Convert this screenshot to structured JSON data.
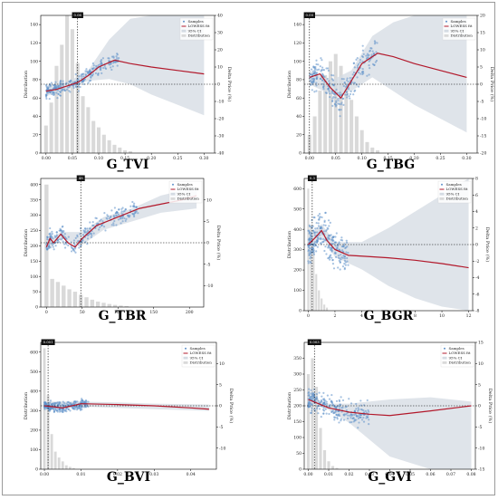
{
  "panels": [
    {
      "id": "tvi",
      "chart_data": {
        "type": "scatter",
        "title": "G_TVI",
        "ylabel_left": "Distribution",
        "ylabel_right": "Delta Price (%)",
        "xlim": [
          -0.01,
          0.32
        ],
        "ylim_left": [
          0,
          150
        ],
        "ylim_right": [
          -40,
          40
        ],
        "xticks": [
          0.0,
          0.05,
          0.1,
          0.15,
          0.2,
          0.25,
          0.3
        ],
        "xtick_labels": [
          "0.00",
          "0.05",
          "0.10",
          "0.15",
          "0.20",
          "0.25",
          "0.30"
        ],
        "yticks_left": [
          0,
          20,
          40,
          60,
          80,
          100,
          120,
          140
        ],
        "yticks_right": [
          -40,
          -30,
          -20,
          -10,
          0,
          10,
          20,
          30,
          40
        ],
        "threshold_x": 0.06,
        "threshold_label": "0.06",
        "legend": [
          "Samples",
          "LOWESS fit",
          "95% CI",
          "Distribution"
        ],
        "legend_position": "top-right",
        "hist": {
          "x": [
            0.0,
            0.01,
            0.02,
            0.03,
            0.04,
            0.05,
            0.06,
            0.07,
            0.08,
            0.09,
            0.1,
            0.11,
            0.12,
            0.13,
            0.14,
            0.15,
            0.16
          ],
          "values": [
            30,
            55,
            95,
            118,
            150,
            135,
            98,
            62,
            50,
            35,
            28,
            20,
            14,
            9,
            6,
            3,
            2
          ]
        },
        "lowess": {
          "x": [
            0.0,
            0.02,
            0.04,
            0.06,
            0.08,
            0.1,
            0.13,
            0.16,
            0.2,
            0.25,
            0.3
          ],
          "y": [
            -4,
            -3,
            -1,
            1,
            5,
            10,
            14,
            12,
            10,
            8,
            6
          ]
        },
        "ci": {
          "x": [
            0.0,
            0.04,
            0.08,
            0.12,
            0.16,
            0.2,
            0.25,
            0.3
          ],
          "upper": [
            -1,
            1,
            8,
            26,
            38,
            40,
            40,
            40
          ],
          "lower": [
            -7,
            -3,
            2,
            3,
            0,
            -6,
            -12,
            -18
          ]
        },
        "scatter": {
          "x_range": [
            0.0,
            0.14
          ],
          "y_center": [
            -4,
            14
          ],
          "spread": 4
        }
      }
    },
    {
      "id": "tbg",
      "chart_data": {
        "type": "scatter",
        "title": "G_TBG",
        "ylabel_left": "Distribution",
        "ylabel_right": "Delta Price (%)",
        "xlim": [
          -0.01,
          0.32
        ],
        "ylim_left": [
          0,
          150
        ],
        "ylim_right": [
          -20,
          20
        ],
        "xticks": [
          0.0,
          0.05,
          0.1,
          0.15,
          0.2,
          0.25,
          0.3
        ],
        "xtick_labels": [
          "0.00",
          "0.05",
          "0.10",
          "0.15",
          "0.20",
          "0.25",
          "0.30"
        ],
        "yticks_left": [
          0,
          20,
          40,
          60,
          80,
          100,
          120,
          140
        ],
        "yticks_right": [
          -20,
          -15,
          -10,
          -5,
          0,
          5,
          10,
          15,
          20
        ],
        "threshold_x": 0.0,
        "threshold_label": "0.00",
        "legend": [
          "Samples",
          "LOWESS fit",
          "95% CI",
          "Distribution"
        ],
        "legend_position": "top-right",
        "hist": {
          "x": [
            0.0,
            0.01,
            0.02,
            0.03,
            0.04,
            0.05,
            0.06,
            0.07,
            0.08,
            0.09,
            0.1,
            0.11,
            0.12,
            0.13
          ],
          "values": [
            20,
            40,
            68,
            85,
            100,
            108,
            95,
            75,
            58,
            40,
            25,
            12,
            6,
            3
          ]
        },
        "lowess": {
          "x": [
            0.0,
            0.02,
            0.04,
            0.06,
            0.08,
            0.1,
            0.13,
            0.16,
            0.2,
            0.25,
            0.3
          ],
          "y": [
            2,
            3,
            -1,
            -4,
            1,
            6,
            9,
            8,
            6,
            4,
            2
          ]
        },
        "ci": {
          "x": [
            0.0,
            0.04,
            0.08,
            0.12,
            0.16,
            0.2,
            0.25,
            0.3
          ],
          "upper": [
            4,
            1,
            4,
            14,
            18,
            20,
            20,
            20
          ],
          "lower": [
            0,
            -3,
            -2,
            2,
            -2,
            -6,
            -10,
            -14
          ]
        },
        "scatter": {
          "x_range": [
            0.0,
            0.13
          ],
          "y_center": [
            -5,
            10
          ],
          "spread": 4
        }
      }
    },
    {
      "id": "tbr",
      "chart_data": {
        "type": "scatter",
        "title": "G_TBR",
        "ylabel_left": "Distribution",
        "ylabel_right": "Delta Price (%)",
        "xlim": [
          -8,
          220
        ],
        "ylim_left": [
          0,
          420
        ],
        "ylim_right": [
          -15,
          15
        ],
        "xticks": [
          0,
          50,
          100,
          150,
          200
        ],
        "xtick_labels": [
          "0",
          "50",
          "100",
          "150",
          "200"
        ],
        "yticks_left": [
          0,
          50,
          100,
          150,
          200,
          250,
          300,
          350,
          400
        ],
        "yticks_right": [
          -10,
          -5,
          0,
          5,
          10
        ],
        "threshold_x": 48,
        "threshold_label": "48",
        "legend": [
          "Samples",
          "LOWESS fit",
          "95% CI",
          "Distribution"
        ],
        "legend_position": "top-right",
        "hist": {
          "x": [
            0,
            8,
            16,
            24,
            32,
            40,
            48,
            56,
            64,
            72,
            80,
            88,
            96,
            104,
            112
          ],
          "values": [
            400,
            92,
            82,
            70,
            58,
            50,
            40,
            32,
            24,
            18,
            14,
            10,
            7,
            5,
            3
          ]
        },
        "lowess": {
          "x": [
            0,
            5,
            10,
            20,
            30,
            40,
            50,
            70,
            100,
            130,
            160,
            190,
            210
          ],
          "y": [
            -1,
            1,
            0,
            2,
            0,
            -1,
            1,
            4,
            6,
            8,
            9,
            10,
            11
          ]
        },
        "ci": {
          "x": [
            0,
            20,
            50,
            80,
            120,
            160,
            210
          ],
          "upper": [
            0,
            2.5,
            2.5,
            6,
            8,
            11,
            13
          ],
          "lower": [
            -2,
            1,
            -0.5,
            3,
            5,
            7,
            8
          ]
        },
        "scatter": {
          "x_range": [
            0,
            130
          ],
          "y_center": [
            -1,
            8
          ],
          "spread": 2
        }
      }
    },
    {
      "id": "bgr",
      "chart_data": {
        "type": "scatter",
        "title": "G_BGR",
        "ylabel_left": "Distribution",
        "ylabel_right": "Delta Price (%)",
        "xlim": [
          -0.3,
          12.3
        ],
        "ylim_left": [
          0,
          650
        ],
        "ylim_right": [
          -8,
          8
        ],
        "xticks": [
          0,
          2,
          4,
          6,
          8,
          10,
          12
        ],
        "xtick_labels": [
          "0",
          "2",
          "4",
          "6",
          "8",
          "10",
          "12"
        ],
        "yticks_left": [
          0,
          100,
          200,
          300,
          400,
          500,
          600
        ],
        "yticks_right": [
          -8,
          -6,
          -4,
          -2,
          0,
          2,
          4,
          6,
          8
        ],
        "threshold_x": 0.3,
        "threshold_label": "0.3",
        "legend": [
          "Samples",
          "LOWESS fit",
          "95% CI",
          "Distribution"
        ],
        "legend_position": "top-right",
        "hist": {
          "x": [
            0.0,
            0.2,
            0.4,
            0.6,
            0.8,
            1.0,
            1.2,
            1.4
          ],
          "values": [
            600,
            420,
            300,
            180,
            100,
            60,
            30,
            15
          ]
        },
        "lowess": {
          "x": [
            0.0,
            0.5,
            1.0,
            1.4,
            2.0,
            3.0,
            4.0,
            6.0,
            8.0,
            10.0,
            12.0
          ],
          "y": [
            0,
            0.8,
            1.7,
            0.5,
            -0.6,
            -1.3,
            -1.4,
            -1.6,
            -1.9,
            -2.3,
            -2.8
          ]
        },
        "ci": {
          "x": [
            0,
            1,
            2,
            4,
            6,
            8,
            10,
            12
          ],
          "upper": [
            1,
            2.5,
            0.3,
            0.3,
            2,
            4,
            6,
            8
          ],
          "lower": [
            -1,
            1,
            -1.5,
            -3,
            -5,
            -6.5,
            -7.5,
            -8
          ]
        },
        "scatter": {
          "x_range": [
            0.0,
            3.0
          ],
          "y_center": [
            0,
            -1
          ],
          "spread": 2.2
        }
      }
    },
    {
      "id": "bvi",
      "chart_data": {
        "type": "scatter",
        "title": "G_BVI",
        "ylabel_left": "Distribution",
        "ylabel_right": "Delta Price (%)",
        "xlim": [
          -0.001,
          0.047
        ],
        "ylim_left": [
          0,
          650
        ],
        "ylim_right": [
          -15,
          15
        ],
        "xticks": [
          0.0,
          0.01,
          0.02,
          0.03,
          0.04
        ],
        "xtick_labels": [
          "0.00",
          "0.01",
          "0.02",
          "0.03",
          "0.04"
        ],
        "yticks_left": [
          0,
          100,
          200,
          300,
          400,
          500,
          600
        ],
        "yticks_right": [
          -10,
          -5,
          0,
          5,
          10
        ],
        "threshold_x": 0.001,
        "threshold_label": "0.001",
        "legend": [
          "Samples",
          "LOWESS fit",
          "95% CI",
          "Distribution"
        ],
        "legend_position": "top-right",
        "hist": {
          "x": [
            0.0,
            0.001,
            0.002,
            0.003,
            0.004,
            0.005,
            0.006,
            0.007,
            0.008
          ],
          "values": [
            620,
            380,
            180,
            90,
            60,
            40,
            20,
            12,
            6
          ]
        },
        "lowess": {
          "x": [
            0.0,
            0.005,
            0.01,
            0.02,
            0.03,
            0.04,
            0.045
          ],
          "y": [
            0,
            -0.5,
            0.5,
            0.3,
            0,
            -0.5,
            -0.8
          ]
        },
        "ci": {
          "x": [
            0.0,
            0.01,
            0.02,
            0.03,
            0.045
          ],
          "upper": [
            1,
            1,
            0.8,
            0.5,
            0.3
          ],
          "lower": [
            -1,
            -0.2,
            -0.5,
            -0.8,
            -1.2
          ]
        },
        "scatter": {
          "x_range": [
            0.0,
            0.012
          ],
          "y_center": [
            0,
            0
          ],
          "spread": 1.2
        }
      }
    },
    {
      "id": "gvi",
      "chart_data": {
        "type": "scatter",
        "title": "G_GVI",
        "ylabel_left": "Distribution",
        "ylabel_right": "Delta Price (%)",
        "xlim": [
          -0.002,
          0.082
        ],
        "ylim_left": [
          0,
          400
        ],
        "ylim_right": [
          -15,
          15
        ],
        "xticks": [
          0.0,
          0.01,
          0.02,
          0.03,
          0.04,
          0.05,
          0.06,
          0.07,
          0.08
        ],
        "xtick_labels": [
          "0.00",
          "0.01",
          "0.02",
          "0.03",
          "0.04",
          "0.05",
          "0.06",
          "0.07",
          "0.08"
        ],
        "yticks_left": [
          0,
          50,
          100,
          150,
          200,
          250,
          300,
          350
        ],
        "yticks_right": [
          -15,
          -10,
          -5,
          0,
          5,
          10,
          15
        ],
        "threshold_x": 0.003,
        "threshold_label": "0.003",
        "legend": [
          "Samples",
          "LOWESS fit",
          "95% CI",
          "Distribution"
        ],
        "legend_position": "top-right",
        "hist": {
          "x": [
            0.0,
            0.002,
            0.004,
            0.006,
            0.008,
            0.01,
            0.012,
            0.014
          ],
          "values": [
            300,
            350,
            260,
            130,
            60,
            25,
            10,
            4
          ]
        },
        "lowess": {
          "x": [
            0.0,
            0.005,
            0.01,
            0.02,
            0.03,
            0.04,
            0.06,
            0.08
          ],
          "y": [
            1.5,
            0.5,
            -0.5,
            -1.5,
            -2,
            -2.3,
            -1.2,
            0
          ]
        },
        "ci": {
          "x": [
            0.0,
            0.01,
            0.02,
            0.04,
            0.06,
            0.08
          ],
          "upper": [
            2,
            0.5,
            0.5,
            1.5,
            2,
            1
          ],
          "lower": [
            1,
            -1,
            -4,
            -12,
            -15,
            -15
          ]
        },
        "scatter": {
          "x_range": [
            0.0,
            0.03
          ],
          "y_center": [
            1,
            -2
          ],
          "spread": 2.5
        }
      }
    }
  ],
  "colors": {
    "hist": "#d9d9d9",
    "ci": "#d4dbe3",
    "samples": "#5d8fc9",
    "lowess": "#b2182b",
    "threshold": "#000000",
    "zero_line": "#000000"
  }
}
